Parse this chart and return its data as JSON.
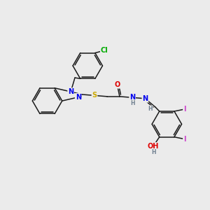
{
  "bg_color": "#ebebeb",
  "bond_color": "#1a1a1a",
  "atom_colors": {
    "N": "#0000ee",
    "S": "#ccaa00",
    "O": "#dd0000",
    "Cl": "#00aa00",
    "I": "#cc44cc",
    "H": "#708090",
    "C": "#1a1a1a"
  },
  "fs": 7.0,
  "fs_small": 5.5,
  "lw": 1.1,
  "doff": 0.07
}
